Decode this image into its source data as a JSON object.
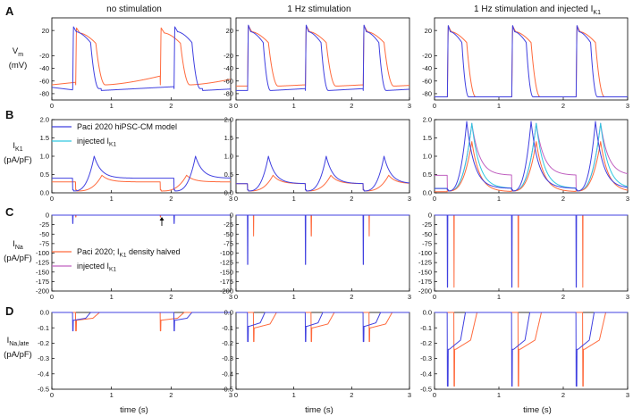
{
  "chart_data": {
    "type": "line",
    "title": "",
    "column_titles": [
      "no stimulation",
      "1 Hz stimulation",
      "1 Hz stimulation and injected I",
      "K1"
    ],
    "row_labels": [
      "A",
      "B",
      "C",
      "D"
    ],
    "xlabel": "time (s)",
    "x_ticks": [
      "0",
      "1",
      "2",
      "3"
    ],
    "xlim": [
      0,
      3
    ],
    "rows": [
      {
        "ylabel_lines": [
          "V",
          "m",
          "(mV)"
        ],
        "ylim": [
          -90,
          40
        ],
        "y_ticks": [
          "20",
          "-20",
          "-40",
          "-60",
          "-80"
        ],
        "y_tick_values": [
          20,
          -20,
          -40,
          -60,
          -80
        ]
      },
      {
        "ylabel_lines": [
          "I",
          "K1",
          "(pA/pF)"
        ],
        "ylim": [
          0,
          2
        ],
        "y_ticks": [
          "2.0",
          "1.5",
          "1.0",
          "0.5",
          "0.0"
        ],
        "y_tick_values": [
          2.0,
          1.5,
          1.0,
          0.5,
          0.0
        ]
      },
      {
        "ylabel_lines": [
          "I",
          "Na",
          "(pA/pF)"
        ],
        "ylim": [
          -200,
          0
        ],
        "y_ticks": [
          "0",
          "-25",
          "-50",
          "-75",
          "-100",
          "-125",
          "-150",
          "-175",
          "-200"
        ],
        "y_tick_values": [
          0,
          -25,
          -50,
          -75,
          -100,
          -125,
          -150,
          -175,
          -200
        ]
      },
      {
        "ylabel_lines": [
          "I",
          "Na,late",
          "(pA/pF)"
        ],
        "ylim": [
          -0.5,
          0
        ],
        "y_ticks": [
          "0.0",
          "-0.1",
          "-0.2",
          "-0.3",
          "-0.4",
          "-0.5"
        ],
        "y_tick_values": [
          0.0,
          -0.1,
          -0.2,
          -0.3,
          -0.4,
          -0.5
        ]
      }
    ],
    "legend_row_B": [
      {
        "label": "Paci 2020 hiPSC-CM model",
        "color": "#4040e0"
      },
      {
        "label": "injected I",
        "sub": "K1",
        "color": "#30c8e0"
      }
    ],
    "legend_row_C": [
      {
        "label": "Paci 2020; I",
        "sub": "K1",
        "label_end": " density halved",
        "color": "#ff6a3d"
      },
      {
        "label": "injected I",
        "sub": "K1",
        "color": "#c060c0"
      }
    ],
    "colors": {
      "paci": "#4040e0",
      "halved": "#ff6a3d",
      "injected_cyan": "#30c8e0",
      "injected_magenta": "#c060c0",
      "axis": "#000000"
    },
    "series_summary": {
      "A": {
        "no_stim_blue_upstrokes_s": [
          0.35,
          2.05
        ],
        "no_stim_orange_upstrokes_s": [
          0.4,
          1.82
        ],
        "paced_upstrokes_s": [
          0.2,
          1.2,
          2.2
        ],
        "peak_mV": 28,
        "rest_mV_col1": -70,
        "rest_mV_col3": -85
      },
      "B": {
        "peak_pA_pF_col1_col2": 1.0,
        "peak_pA_pF_col3": 1.95
      },
      "C": {
        "peak_col2_blue": -130,
        "peak_col2_orange": -55,
        "peak_col3": -190
      },
      "D": {
        "peak_col1": -0.12,
        "peak_col2": -0.19,
        "peak_col3": -0.48
      }
    }
  }
}
